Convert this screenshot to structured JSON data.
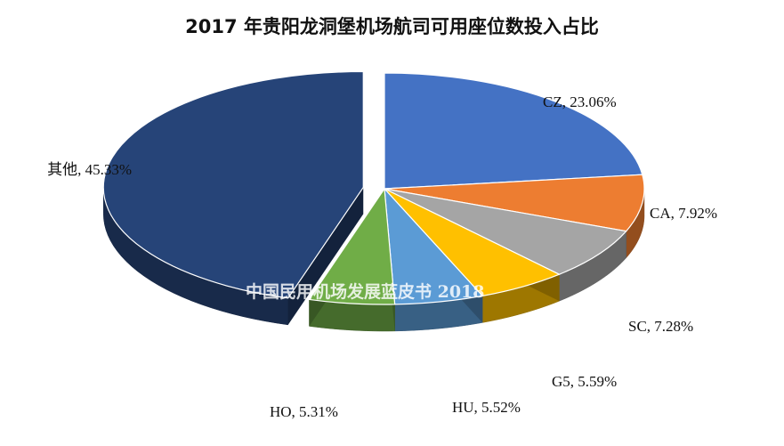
{
  "watermark": "中国民用机场发展蓝皮书 2018",
  "chart_data": {
    "type": "pie",
    "title": "2017 年贵阳龙洞堡机场航司可用座位数投入占比",
    "slices": [
      {
        "name": "CZ",
        "value": 23.06,
        "label": "CZ, 23.06%",
        "color": "#4472C4"
      },
      {
        "name": "CA",
        "value": 7.92,
        "label": "CA, 7.92%",
        "color": "#ED7D31"
      },
      {
        "name": "SC",
        "value": 7.28,
        "label": "SC, 7.28%",
        "color": "#A5A5A5"
      },
      {
        "name": "G5",
        "value": 5.59,
        "label": "G5, 5.59%",
        "color": "#FFC000"
      },
      {
        "name": "HU",
        "value": 5.52,
        "label": "HU, 5.52%",
        "color": "#5B9BD5"
      },
      {
        "name": "HO",
        "value": 5.31,
        "label": "HO, 5.31%",
        "color": "#70AD47"
      },
      {
        "name": "其他",
        "value": 45.33,
        "label": "其他, 45.33%",
        "color": "#264478"
      }
    ],
    "exploded": [
      "其他"
    ],
    "style": "3d-pie"
  }
}
